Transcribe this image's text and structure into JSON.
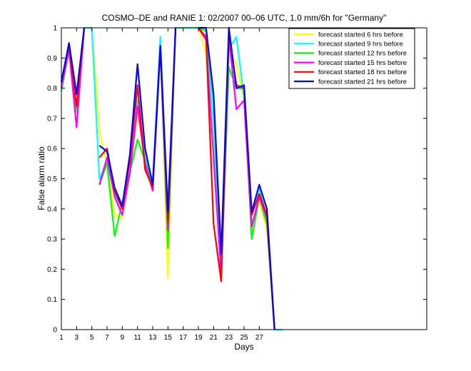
{
  "chart_data": {
    "type": "line",
    "title": "COSMO–DE and RANIE 1: 02/2007 00–06 UTC, 1.0 mm/6h for \"Germany\"",
    "xlabel": "Days",
    "ylabel": "False alarm ratio",
    "xlim": [
      1,
      49
    ],
    "ylim": [
      0,
      1
    ],
    "xticks": [
      1,
      3,
      5,
      7,
      9,
      11,
      13,
      15,
      17,
      19,
      21,
      23,
      25,
      27
    ],
    "yticks": [
      0,
      0.1,
      0.2,
      0.3,
      0.4,
      0.5,
      0.6,
      0.7,
      0.8,
      0.9,
      1
    ],
    "grid": false,
    "legend_position": "top-right",
    "x": [
      1,
      2,
      3,
      4,
      5,
      6,
      7,
      8,
      9,
      10,
      11,
      12,
      13,
      14,
      15,
      16,
      17,
      18,
      19,
      20,
      21,
      22,
      23,
      24,
      25,
      26,
      27,
      28,
      29,
      30,
      31
    ],
    "series": [
      {
        "name": "forecast started 6 hrs before",
        "color": "#ffff00",
        "values": [
          0.8,
          0.94,
          0.76,
          1.0,
          1.0,
          0.66,
          0.55,
          0.38,
          0.37,
          0.52,
          0.71,
          0.58,
          0.46,
          0.95,
          0.17,
          1.0,
          1.0,
          1.0,
          1.0,
          0.92,
          0.6,
          0.18,
          0.93,
          0.88,
          0.76,
          0.31,
          0.43,
          0.33,
          0.0,
          0.0,
          null
        ]
      },
      {
        "name": "forecast started 9 hrs before",
        "color": "#00ffff",
        "values": [
          0.79,
          0.92,
          0.72,
          1.0,
          1.0,
          0.5,
          0.55,
          0.45,
          0.4,
          0.51,
          0.76,
          0.57,
          0.49,
          0.97,
          0.33,
          1.0,
          1.0,
          1.0,
          1.0,
          1.0,
          0.68,
          0.2,
          0.93,
          0.97,
          0.77,
          0.38,
          0.47,
          0.37,
          0.0,
          0.0,
          null
        ]
      },
      {
        "name": "forecast started 12 hrs before",
        "color": "#00ff00",
        "values": [
          0.83,
          0.93,
          0.73,
          1.0,
          null,
          0.48,
          0.55,
          0.31,
          0.42,
          0.52,
          0.63,
          0.56,
          0.47,
          0.93,
          0.27,
          1.0,
          null,
          null,
          1.0,
          0.99,
          0.76,
          0.17,
          0.87,
          0.8,
          0.8,
          0.3,
          0.44,
          0.35,
          0.0,
          null,
          null
        ]
      },
      {
        "name": "forecast started 15 hrs before",
        "color": "#ff00ff",
        "values": [
          0.8,
          0.93,
          0.67,
          1.0,
          null,
          0.48,
          0.57,
          0.44,
          0.38,
          0.52,
          0.74,
          0.55,
          0.46,
          0.93,
          0.33,
          1.0,
          null,
          null,
          1.0,
          0.96,
          0.57,
          0.18,
          0.97,
          0.73,
          0.76,
          0.34,
          0.44,
          0.37,
          0.0,
          null,
          null
        ]
      },
      {
        "name": "forecast started 18 hrs before",
        "color": "#ff0000",
        "values": [
          0.82,
          0.94,
          0.74,
          1.0,
          null,
          0.57,
          0.6,
          0.46,
          0.4,
          0.56,
          0.81,
          0.53,
          0.47,
          0.94,
          0.36,
          1.0,
          null,
          null,
          1.0,
          0.97,
          0.35,
          0.16,
          0.98,
          0.81,
          0.8,
          0.38,
          0.45,
          0.38,
          0.0,
          null,
          null
        ]
      },
      {
        "name": "forecast started 21 hrs before",
        "color": "#0000ff",
        "values": [
          0.82,
          0.95,
          0.78,
          1.0,
          null,
          0.61,
          0.59,
          0.47,
          0.41,
          0.58,
          0.88,
          0.6,
          0.48,
          0.94,
          0.39,
          1.0,
          null,
          null,
          1.0,
          1.0,
          0.78,
          0.25,
          1.0,
          0.8,
          0.81,
          0.39,
          0.48,
          0.4,
          0.0,
          null,
          null
        ]
      }
    ]
  }
}
